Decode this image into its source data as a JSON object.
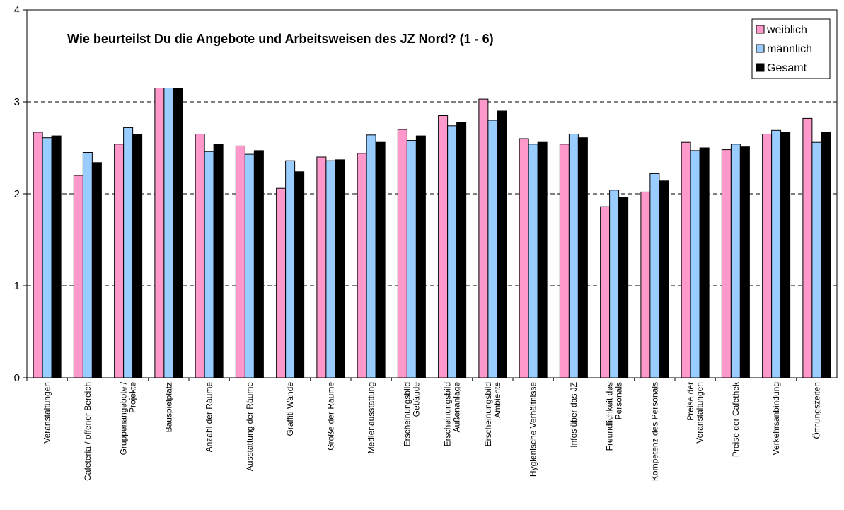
{
  "chart_data": {
    "type": "bar",
    "title": "Wie beurteilst Du die Angebote und Arbeitsweisen des JZ Nord? (1 - 6)",
    "categories": [
      [
        "Veranstaltungen"
      ],
      [
        "Cafeteria / offener Bereich"
      ],
      [
        "Gruppenangebote /",
        "Projekte"
      ],
      [
        "Bauspielplatz"
      ],
      [
        "Anzahl der Räume"
      ],
      [
        "Ausstattung der Räume"
      ],
      [
        "Graffiti Wände"
      ],
      [
        "Größe der Räume"
      ],
      [
        "Medienausstattung"
      ],
      [
        "Erscheinungsbild",
        "Gebäude"
      ],
      [
        "Erscheinungsbild",
        "Außenanlage"
      ],
      [
        "Erscheinungsbild",
        "Ambiente"
      ],
      [
        "Hygienische Verhältnisse"
      ],
      [
        "Infos über das JZ"
      ],
      [
        "Freundlichkeit des",
        "Personals"
      ],
      [
        "Kompetenz des Personals"
      ],
      [
        "Preise der",
        "Veranstaltungen"
      ],
      [
        "Preise der Cafethek"
      ],
      [
        "Verkehrsanbindung"
      ],
      [
        "Öffnungszeiten"
      ]
    ],
    "series": [
      {
        "name": "weiblich",
        "color": "#ff99cc",
        "values": [
          2.67,
          2.2,
          2.54,
          3.15,
          2.65,
          2.52,
          2.06,
          2.4,
          2.44,
          2.7,
          2.85,
          3.03,
          2.6,
          2.54,
          1.86,
          2.02,
          2.56,
          2.48,
          2.65,
          2.82
        ]
      },
      {
        "name": "männlich",
        "color": "#99ccff",
        "values": [
          2.61,
          2.45,
          2.72,
          3.15,
          2.46,
          2.43,
          2.36,
          2.36,
          2.64,
          2.58,
          2.74,
          2.8,
          2.54,
          2.65,
          2.04,
          2.22,
          2.47,
          2.54,
          2.69,
          2.56
        ]
      },
      {
        "name": "Gesamt",
        "color": "#000000",
        "values": [
          2.63,
          2.34,
          2.65,
          3.15,
          2.54,
          2.47,
          2.24,
          2.37,
          2.56,
          2.63,
          2.78,
          2.9,
          2.56,
          2.61,
          1.96,
          2.14,
          2.5,
          2.51,
          2.67,
          2.67
        ]
      }
    ],
    "ylim": [
      0,
      4
    ],
    "yticks": [
      0,
      1,
      2,
      3,
      4
    ],
    "grid": true,
    "legend": "top-right"
  }
}
